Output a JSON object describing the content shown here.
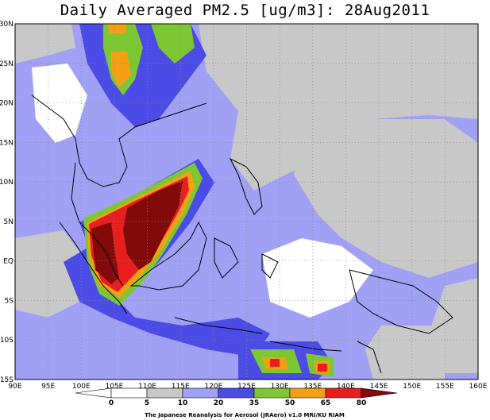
{
  "title": "Daily Averaged PM2.5 [ug/m3]: 28Aug2011",
  "map": {
    "lon_range": [
      90,
      160
    ],
    "lat_range": [
      -15,
      30
    ],
    "lon_ticks": [
      {
        "v": 90,
        "label": "90E"
      },
      {
        "v": 95,
        "label": "95E"
      },
      {
        "v": 100,
        "label": "100E"
      },
      {
        "v": 105,
        "label": "105E"
      },
      {
        "v": 110,
        "label": "110E"
      },
      {
        "v": 115,
        "label": "115E"
      },
      {
        "v": 120,
        "label": "120E"
      },
      {
        "v": 125,
        "label": "125E"
      },
      {
        "v": 130,
        "label": "130E"
      },
      {
        "v": 135,
        "label": "135E"
      },
      {
        "v": 140,
        "label": "140E"
      },
      {
        "v": 145,
        "label": "145E"
      },
      {
        "v": 150,
        "label": "150E"
      },
      {
        "v": 155,
        "label": "155E"
      },
      {
        "v": 160,
        "label": "160E"
      }
    ],
    "lat_ticks": [
      {
        "v": 30,
        "label": "30N"
      },
      {
        "v": 25,
        "label": "25N"
      },
      {
        "v": 20,
        "label": "20N"
      },
      {
        "v": 15,
        "label": "15N"
      },
      {
        "v": 10,
        "label": "10N"
      },
      {
        "v": 5,
        "label": "5N"
      },
      {
        "v": 0,
        "label": "EQ"
      },
      {
        "v": -5,
        "label": "5S"
      },
      {
        "v": -10,
        "label": "10S"
      },
      {
        "v": -15,
        "label": "15S"
      }
    ],
    "grid": "dotted"
  },
  "colorbar": {
    "levels": [
      "0",
      "5",
      "10",
      "20",
      "35",
      "50",
      "65",
      "80"
    ],
    "colors": [
      "#ffffff",
      "#ffffff",
      "#c8c8c8",
      "#a0a0f5",
      "#4b4be6",
      "#7dc832",
      "#f5a014",
      "#e61e1e",
      "#820a0a"
    ]
  },
  "credit": "The Japanese Reanalysis for Aerosol (JRAero) v1.0 MRI/KU RIAM"
}
